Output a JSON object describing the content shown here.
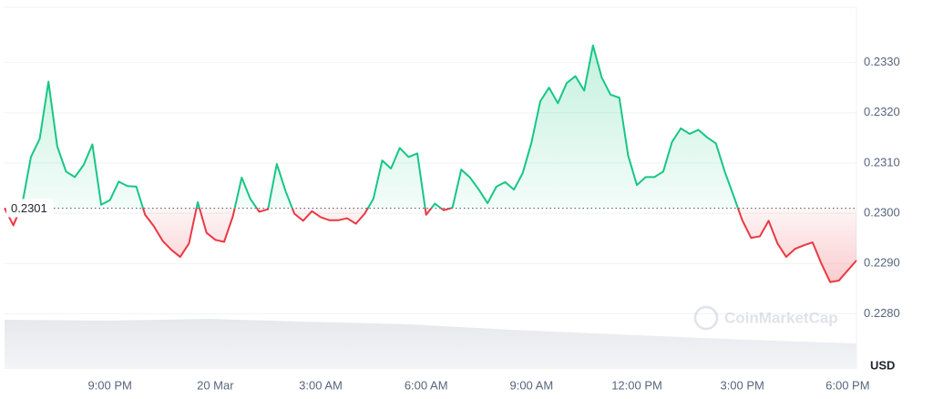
{
  "chart_data": {
    "type": "line",
    "x": [
      0,
      0.25,
      0.5,
      0.75,
      1,
      1.25,
      1.5,
      1.75,
      2,
      2.25,
      2.5,
      2.75,
      3,
      3.25,
      3.5,
      3.75,
      4,
      4.25,
      4.5,
      4.75,
      5,
      5.25,
      5.5,
      5.75,
      6,
      6.25,
      6.5,
      6.75,
      7,
      7.25,
      7.5,
      7.75,
      8,
      8.25,
      8.5,
      8.75,
      9,
      9.25,
      9.5,
      9.75,
      10,
      10.25,
      10.5,
      10.75,
      11,
      11.25,
      11.5,
      11.75,
      12,
      12.25,
      12.5,
      12.75,
      13,
      13.25,
      13.5,
      13.75,
      14,
      14.25,
      14.5,
      14.75,
      15,
      15.25,
      15.5,
      15.75,
      16,
      16.25,
      16.5,
      16.75,
      17,
      17.25,
      17.5,
      17.75,
      18,
      18.25,
      18.5,
      18.75,
      19,
      19.25,
      19.5,
      19.75,
      20,
      20.25,
      20.5,
      20.75,
      21,
      21.25,
      21.5,
      21.75,
      22,
      22.25,
      22.5,
      22.75,
      23,
      23.25,
      23.5,
      23.75,
      24,
      24.25
    ],
    "values": [
      0.2301,
      0.22976,
      0.23017,
      0.23112,
      0.23148,
      0.23262,
      0.23133,
      0.23083,
      0.23072,
      0.23096,
      0.23137,
      0.23017,
      0.23026,
      0.23063,
      0.23054,
      0.23053,
      0.22997,
      0.22974,
      0.22945,
      0.22927,
      0.22913,
      0.2294,
      0.23022,
      0.22961,
      0.22947,
      0.22943,
      0.22994,
      0.23071,
      0.23028,
      0.23003,
      0.23008,
      0.23098,
      0.23044,
      0.22999,
      0.22985,
      0.23004,
      0.22992,
      0.22986,
      0.22986,
      0.2299,
      0.22979,
      0.22999,
      0.23029,
      0.23105,
      0.23089,
      0.2313,
      0.23112,
      0.23119,
      0.22997,
      0.23019,
      0.23006,
      0.23011,
      0.23087,
      0.23071,
      0.23047,
      0.2302,
      0.23053,
      0.23062,
      0.23047,
      0.2308,
      0.23141,
      0.23223,
      0.2325,
      0.23219,
      0.23259,
      0.23273,
      0.23244,
      0.23334,
      0.2327,
      0.23236,
      0.2323,
      0.23115,
      0.23056,
      0.23072,
      0.23072,
      0.23083,
      0.23142,
      0.23169,
      0.23158,
      0.23166,
      0.23151,
      0.23139,
      0.23083,
      0.23035,
      0.22986,
      0.22951,
      0.22954,
      0.22985,
      0.2294,
      0.22913,
      0.22929,
      0.22936,
      0.22942,
      0.229,
      0.22863,
      0.22866,
      0.22886,
      0.22906
    ],
    "reference": 0.2301,
    "up_color": "#16c784",
    "down_color": "#ea3943",
    "xlim": [
      0,
      24.25
    ],
    "xticks": [
      {
        "value": 3,
        "label": "9:00 PM"
      },
      {
        "value": 6,
        "label": "20 Mar"
      },
      {
        "value": 9,
        "label": "3:00 AM"
      },
      {
        "value": 12,
        "label": "6:00 AM"
      },
      {
        "value": 15,
        "label": "9:00 AM"
      },
      {
        "value": 18,
        "label": "12:00 PM"
      },
      {
        "value": 21,
        "label": "3:00 PM"
      },
      {
        "value": 24,
        "label": "6:00 PM"
      }
    ],
    "ylim": [
      0.2269,
      0.2341
    ],
    "yticks": [
      {
        "value": 0.228,
        "label": "0.2280"
      },
      {
        "value": 0.229,
        "label": "0.2290"
      },
      {
        "value": 0.23,
        "label": "0.2300"
      },
      {
        "value": 0.231,
        "label": "0.2310"
      },
      {
        "value": 0.232,
        "label": "0.2320"
      },
      {
        "value": 0.233,
        "label": "0.2330"
      }
    ],
    "grid": true,
    "y_unit": "USD",
    "watermark": "CoinMarketCap"
  }
}
